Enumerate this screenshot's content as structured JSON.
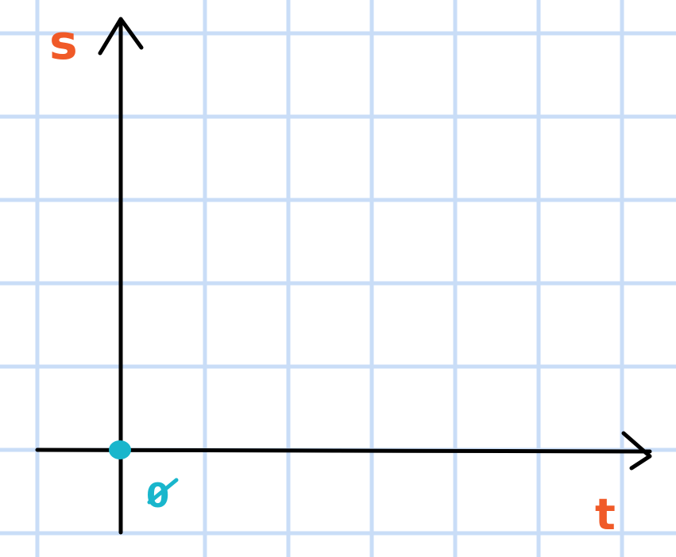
{
  "diagram": {
    "y_axis_label": "s",
    "x_axis_label": "t",
    "origin_label": "0",
    "colors": {
      "grid": "#c9ddf7",
      "axis": "#000000",
      "label": "#f05a28",
      "origin": "#19b6cc"
    }
  }
}
